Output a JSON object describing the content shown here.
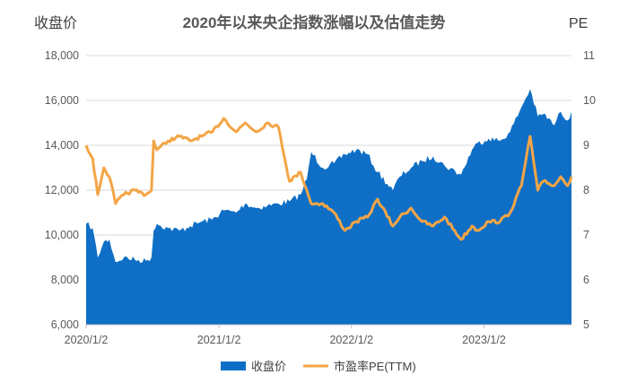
{
  "chart_data": {
    "type": "area+line",
    "title": "2020年以来央企指数涨幅以及估值走势",
    "ylabel_left": "收盘价",
    "ylabel_right": "PE",
    "x_ticks": [
      "2020/1/2",
      "2021/1/2",
      "2022/1/2",
      "2023/1/2"
    ],
    "x_range": [
      "2020/1/2",
      "2023/8/31"
    ],
    "left_axis": {
      "min": 6000,
      "max": 18000,
      "ticks": [
        "6,000",
        "8,000",
        "10,000",
        "12,000",
        "14,000",
        "16,000",
        "18,000"
      ]
    },
    "right_axis": {
      "min": 5,
      "max": 11,
      "ticks": [
        "5",
        "6",
        "7",
        "8",
        "9",
        "10",
        "11"
      ]
    },
    "grid": "horizontal",
    "legend_position": "bottom",
    "series": [
      {
        "name": "收盘价",
        "kind": "area",
        "axis": "left",
        "color": "#0f6fc6",
        "points": [
          [
            "2020/1/2",
            10500
          ],
          [
            "2020/1/20",
            10300
          ],
          [
            "2020/2/3",
            9000
          ],
          [
            "2020/2/20",
            9700
          ],
          [
            "2020/3/6",
            9800
          ],
          [
            "2020/3/23",
            8800
          ],
          [
            "2020/4/15",
            9000
          ],
          [
            "2020/5/15",
            8900
          ],
          [
            "2020/6/15",
            8850
          ],
          [
            "2020/6/30",
            9000
          ],
          [
            "2020/7/6",
            10200
          ],
          [
            "2020/7/15",
            10500
          ],
          [
            "2020/8/15",
            10300
          ],
          [
            "2020/9/15",
            10200
          ],
          [
            "2020/10/15",
            10400
          ],
          [
            "2020/11/15",
            10600
          ],
          [
            "2020/12/15",
            10700
          ],
          [
            "2021/1/15",
            11100
          ],
          [
            "2021/2/18",
            11000
          ],
          [
            "2021/3/15",
            11400
          ],
          [
            "2021/4/15",
            11200
          ],
          [
            "2021/5/15",
            11300
          ],
          [
            "2021/6/15",
            11400
          ],
          [
            "2021/7/15",
            11500
          ],
          [
            "2021/8/15",
            11800
          ],
          [
            "2021/9/1",
            12500
          ],
          [
            "2021/9/13",
            13700
          ],
          [
            "2021/10/15",
            13000
          ],
          [
            "2021/11/15",
            13200
          ],
          [
            "2021/12/15",
            13600
          ],
          [
            "2022/1/15",
            13800
          ],
          [
            "2022/2/15",
            13600
          ],
          [
            "2022/3/15",
            12800
          ],
          [
            "2022/4/26",
            12000
          ],
          [
            "2022/5/15",
            12600
          ],
          [
            "2022/6/15",
            13000
          ],
          [
            "2022/7/15",
            13300
          ],
          [
            "2022/8/15",
            13500
          ],
          [
            "2022/9/15",
            13100
          ],
          [
            "2022/10/31",
            12700
          ],
          [
            "2022/11/30",
            13800
          ],
          [
            "2022/12/15",
            14100
          ],
          [
            "2023/1/15",
            14300
          ],
          [
            "2023/2/15",
            14200
          ],
          [
            "2023/3/15",
            14600
          ],
          [
            "2023/4/15",
            15700
          ],
          [
            "2023/5/9",
            16500
          ],
          [
            "2023/5/30",
            15300
          ],
          [
            "2023/6/15",
            15400
          ],
          [
            "2023/7/15",
            14900
          ],
          [
            "2023/8/1",
            15500
          ],
          [
            "2023/8/20",
            15100
          ],
          [
            "2023/8/31",
            15500
          ]
        ]
      },
      {
        "name": "市盈率PE(TTM)",
        "kind": "line",
        "axis": "right",
        "color": "#f4a545",
        "points": [
          [
            "2020/1/2",
            9.0
          ],
          [
            "2020/1/20",
            8.7
          ],
          [
            "2020/2/3",
            7.9
          ],
          [
            "2020/2/20",
            8.5
          ],
          [
            "2020/3/6",
            8.3
          ],
          [
            "2020/3/23",
            7.7
          ],
          [
            "2020/4/15",
            7.9
          ],
          [
            "2020/5/15",
            8.0
          ],
          [
            "2020/6/15",
            7.9
          ],
          [
            "2020/6/30",
            8.0
          ],
          [
            "2020/7/6",
            9.1
          ],
          [
            "2020/7/15",
            8.9
          ],
          [
            "2020/8/15",
            9.1
          ],
          [
            "2020/9/15",
            9.2
          ],
          [
            "2020/10/15",
            9.1
          ],
          [
            "2020/11/15",
            9.2
          ],
          [
            "2020/12/15",
            9.3
          ],
          [
            "2021/1/15",
            9.6
          ],
          [
            "2021/2/18",
            9.3
          ],
          [
            "2021/3/15",
            9.5
          ],
          [
            "2021/4/15",
            9.3
          ],
          [
            "2021/5/15",
            9.5
          ],
          [
            "2021/6/15",
            9.4
          ],
          [
            "2021/7/15",
            8.2
          ],
          [
            "2021/8/15",
            8.4
          ],
          [
            "2021/9/1",
            8.0
          ],
          [
            "2021/9/13",
            7.7
          ],
          [
            "2021/10/15",
            7.7
          ],
          [
            "2021/11/15",
            7.5
          ],
          [
            "2021/12/15",
            7.1
          ],
          [
            "2022/1/15",
            7.3
          ],
          [
            "2022/2/15",
            7.4
          ],
          [
            "2022/3/15",
            7.8
          ],
          [
            "2022/4/26",
            7.2
          ],
          [
            "2022/5/15",
            7.4
          ],
          [
            "2022/6/15",
            7.6
          ],
          [
            "2022/7/15",
            7.3
          ],
          [
            "2022/8/15",
            7.2
          ],
          [
            "2022/9/15",
            7.4
          ],
          [
            "2022/10/31",
            6.9
          ],
          [
            "2022/11/30",
            7.2
          ],
          [
            "2022/12/15",
            7.1
          ],
          [
            "2023/1/15",
            7.3
          ],
          [
            "2023/2/15",
            7.3
          ],
          [
            "2023/3/15",
            7.5
          ],
          [
            "2023/4/15",
            8.1
          ],
          [
            "2023/5/9",
            9.2
          ],
          [
            "2023/5/30",
            8.0
          ],
          [
            "2023/6/15",
            8.2
          ],
          [
            "2023/7/15",
            8.1
          ],
          [
            "2023/8/1",
            8.3
          ],
          [
            "2023/8/20",
            8.1
          ],
          [
            "2023/8/31",
            8.3
          ]
        ]
      }
    ]
  }
}
